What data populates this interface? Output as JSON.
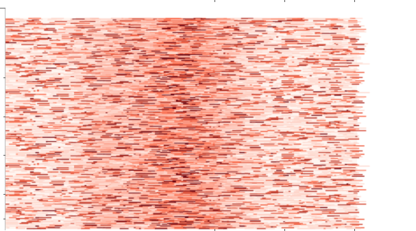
{
  "chart_data": {
    "type": "heatmap",
    "title": "",
    "xlabel": "",
    "ylabel": "",
    "colormap": "Reds",
    "colors": {
      "low": "#fff5f0",
      "mid": "#fb6a4a",
      "high": "#67000d",
      "background": "#ffffff"
    },
    "rows": 250,
    "columns": 200,
    "value_range": [
      0,
      1
    ],
    "background_intensity": 0.12,
    "hot_band": {
      "center_fraction": 0.5,
      "width_fraction": 0.14,
      "intensity": 0.55
    },
    "secondary_band": {
      "center_fraction": 0.28,
      "width_fraction": 0.08,
      "intensity": 0.18
    },
    "streak_density": 0.22,
    "grid": false,
    "legend": "none"
  }
}
